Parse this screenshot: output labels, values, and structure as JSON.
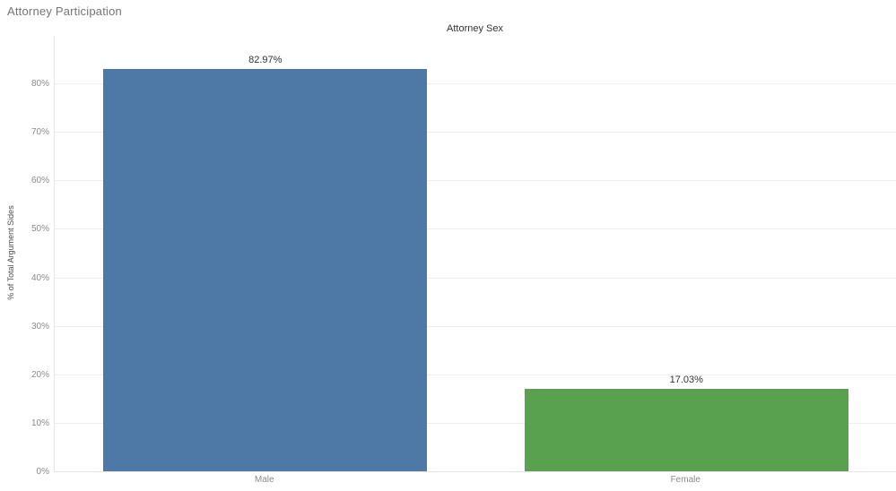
{
  "chart_data": {
    "type": "bar",
    "title": "Attorney Participation",
    "column_header": "Attorney Sex",
    "categories": [
      "Male",
      "Female"
    ],
    "values": [
      82.97,
      17.03
    ],
    "bar_labels": [
      "82.97%",
      "17.03%"
    ],
    "bar_colors": [
      "#4e79a7",
      "#59a14f"
    ],
    "xlabel": "Attorney Sex",
    "ylabel": "% of Total Argument Sides",
    "ylim": [
      0,
      90
    ],
    "yticks": {
      "values": [
        0,
        10,
        20,
        30,
        40,
        50,
        60,
        70,
        80
      ],
      "labels": [
        "0%",
        "10%",
        "20%",
        "30%",
        "40%",
        "50%",
        "60%",
        "70%",
        "80%"
      ]
    },
    "grid": "horizontal",
    "legend": "none"
  }
}
